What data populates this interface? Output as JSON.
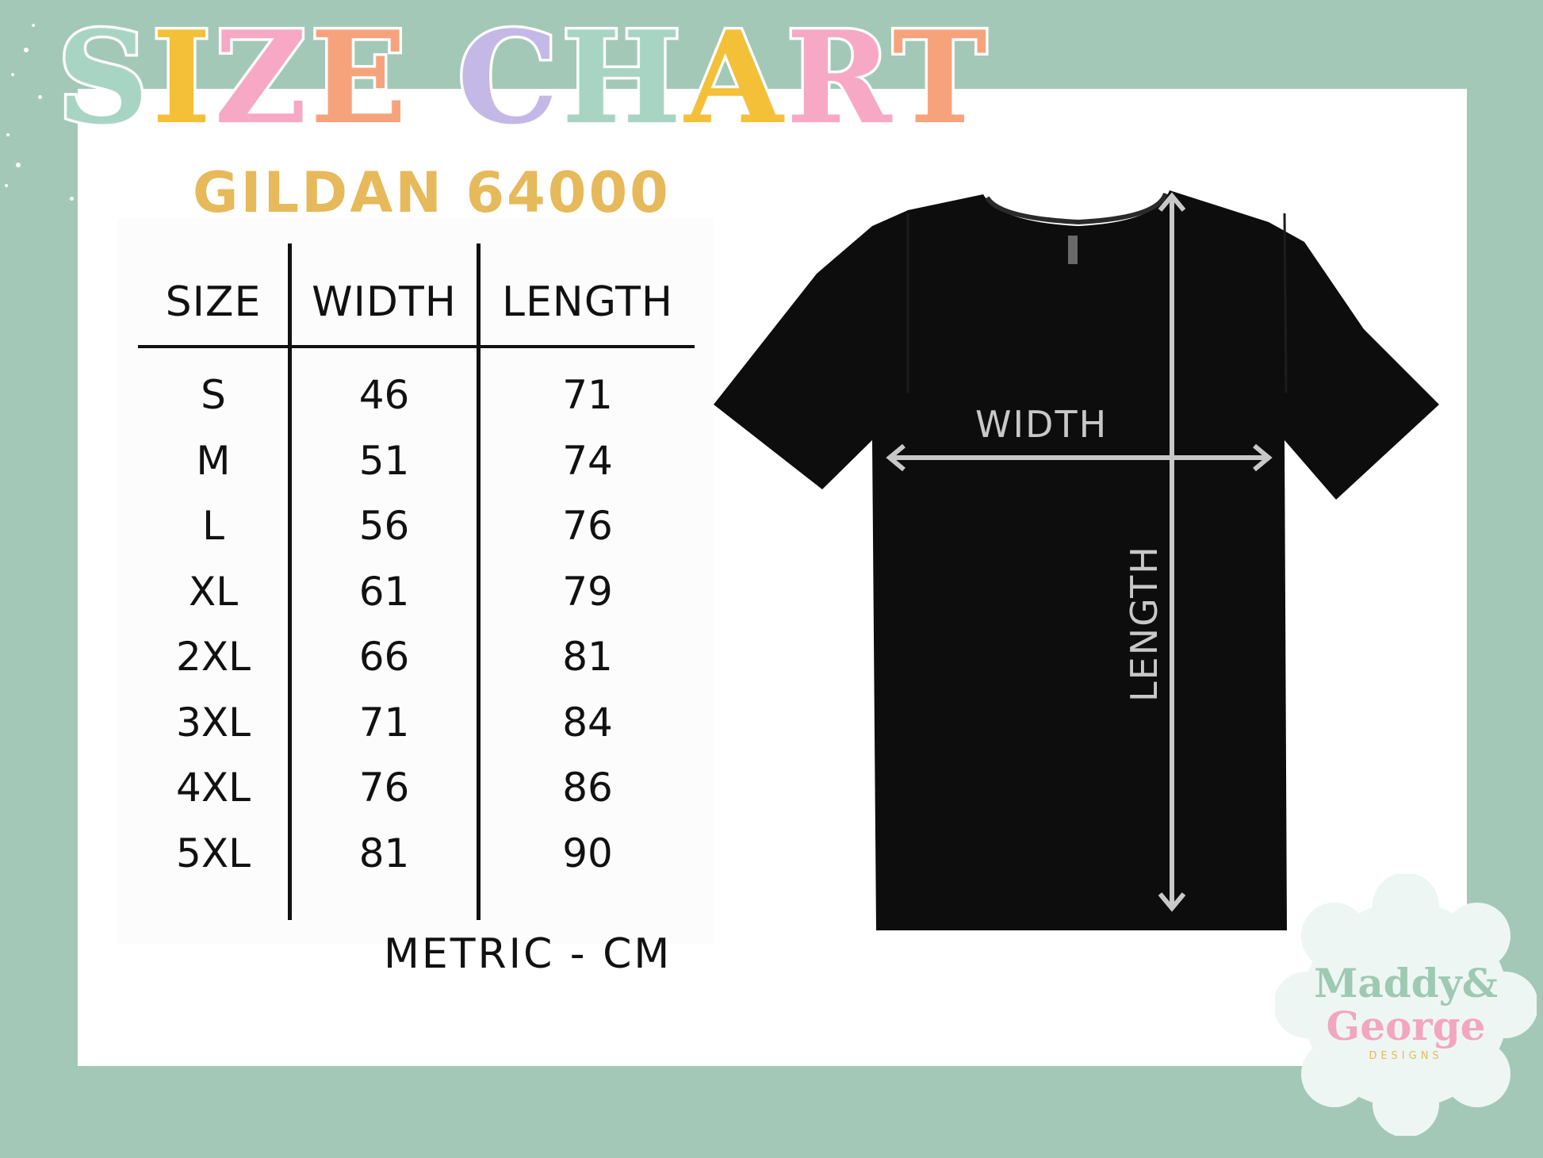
{
  "header": {
    "title_letters": [
      {
        "char": "S",
        "color": "#a8d4c4"
      },
      {
        "char": "I",
        "color": "#f4c038"
      },
      {
        "char": "Z",
        "color": "#f7a8c4"
      },
      {
        "char": "E",
        "color": "#f6a37c"
      },
      {
        "char": " ",
        "color": "#ffffff"
      },
      {
        "char": "C",
        "color": "#c3b8e6"
      },
      {
        "char": "H",
        "color": "#a8d4c4"
      },
      {
        "char": "A",
        "color": "#f4c038"
      },
      {
        "char": "R",
        "color": "#f7a8c4"
      },
      {
        "char": "T",
        "color": "#f6a37c"
      }
    ],
    "subtitle": "GILDAN 64000",
    "subtitle_color": "#e6b95a"
  },
  "size_table": {
    "columns": [
      "SIZE",
      "WIDTH",
      "LENGTH"
    ],
    "rows": [
      [
        "S",
        "46",
        "71"
      ],
      [
        "M",
        "51",
        "74"
      ],
      [
        "L",
        "56",
        "76"
      ],
      [
        "XL",
        "61",
        "79"
      ],
      [
        "2XL",
        "66",
        "81"
      ],
      [
        "3XL",
        "71",
        "84"
      ],
      [
        "4XL",
        "76",
        "86"
      ],
      [
        "5XL",
        "81",
        "90"
      ]
    ],
    "unit_note": "METRIC - CM"
  },
  "diagram": {
    "width_label": "WIDTH",
    "length_label": "LENGTH",
    "shirt_color": "#0d0d0d",
    "arrow_color": "#c8c8c8"
  },
  "logo": {
    "line1": "Maddy&",
    "line2": "George",
    "tagline": "DESIGNS"
  },
  "colors": {
    "background": "#a3c8b8",
    "card": "#ffffff",
    "text": "#111111"
  }
}
